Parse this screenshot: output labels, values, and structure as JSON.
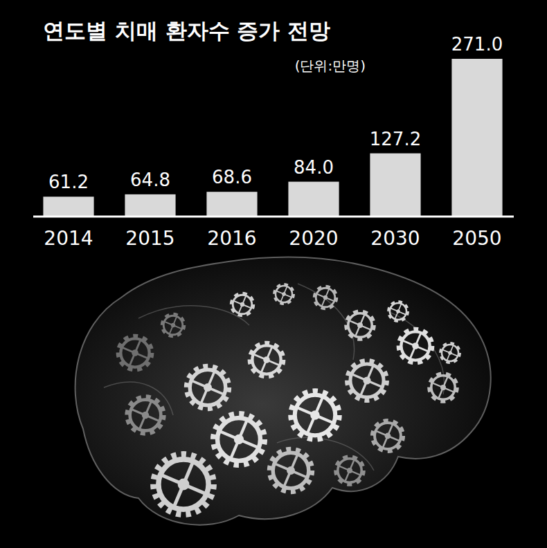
{
  "chart_data": {
    "type": "bar",
    "title": "연도별 치매 환자수 증가 전망",
    "subtitle": "(단위:만명)",
    "categories": [
      "2014",
      "2015",
      "2016",
      "2020",
      "2030",
      "2050"
    ],
    "values": [
      61.2,
      64.8,
      68.6,
      84.0,
      127.2,
      271.0
    ],
    "value_labels": [
      "61.2",
      "64.8",
      "68.6",
      "84.0",
      "127.2",
      "271.0"
    ],
    "color": "#d9d9d9",
    "ylim": [
      32,
      271
    ],
    "data_labels": true,
    "tick_labels": "x",
    "grid": false
  }
}
